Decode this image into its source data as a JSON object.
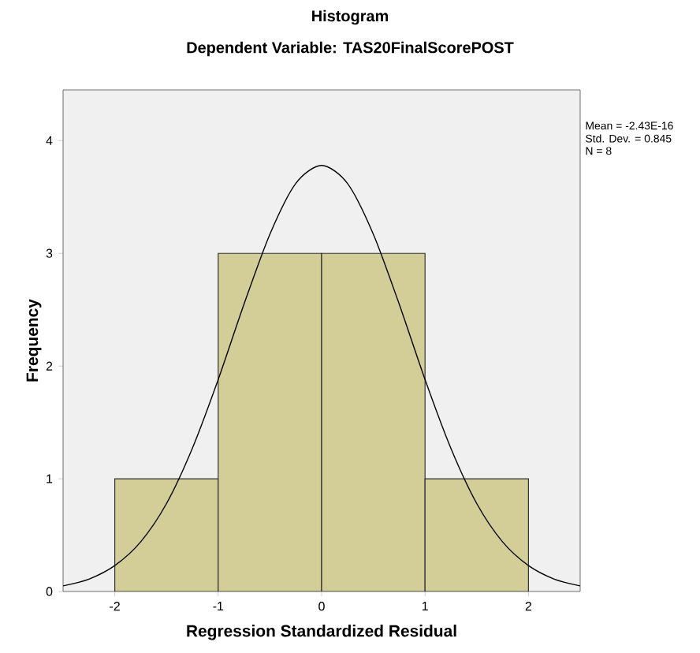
{
  "chart_data": {
    "type": "histogram",
    "title": "Histogram",
    "subtitle": "Dependent Variable: TAS20FinalScorePOST",
    "xlabel": "Regression Standardized Residual",
    "ylabel": "Frequency",
    "annotations": [
      "Mean = -2.43E-16",
      "Std. Dev. = 0.845",
      "N = 8"
    ],
    "bins": [
      -2,
      -1,
      0,
      1,
      2
    ],
    "values": [
      1,
      3,
      3,
      1
    ],
    "color": "#d3ce97",
    "xlim": [
      -2.5,
      2.5
    ],
    "ylim": [
      0,
      4.45
    ],
    "xticks": [
      -2,
      -1,
      0,
      1,
      2
    ],
    "yticks": [
      0,
      1,
      2,
      3,
      4
    ],
    "series": [
      {
        "type": "line",
        "color": "#000000",
        "x": [
          -2.5,
          -2.25,
          -2,
          -1.75,
          -1.5,
          -1.25,
          -1,
          -0.75,
          -0.5,
          -0.25,
          0,
          0.25,
          0.5,
          0.75,
          1,
          1.25,
          1.5,
          1.75,
          2,
          2.25,
          2.5
        ],
        "values": [
          0.05,
          0.11,
          0.23,
          0.44,
          0.78,
          1.27,
          1.88,
          2.55,
          3.17,
          3.62,
          3.78,
          3.62,
          3.17,
          2.55,
          1.88,
          1.27,
          0.78,
          0.44,
          0.23,
          0.11,
          0.05
        ]
      }
    ]
  }
}
